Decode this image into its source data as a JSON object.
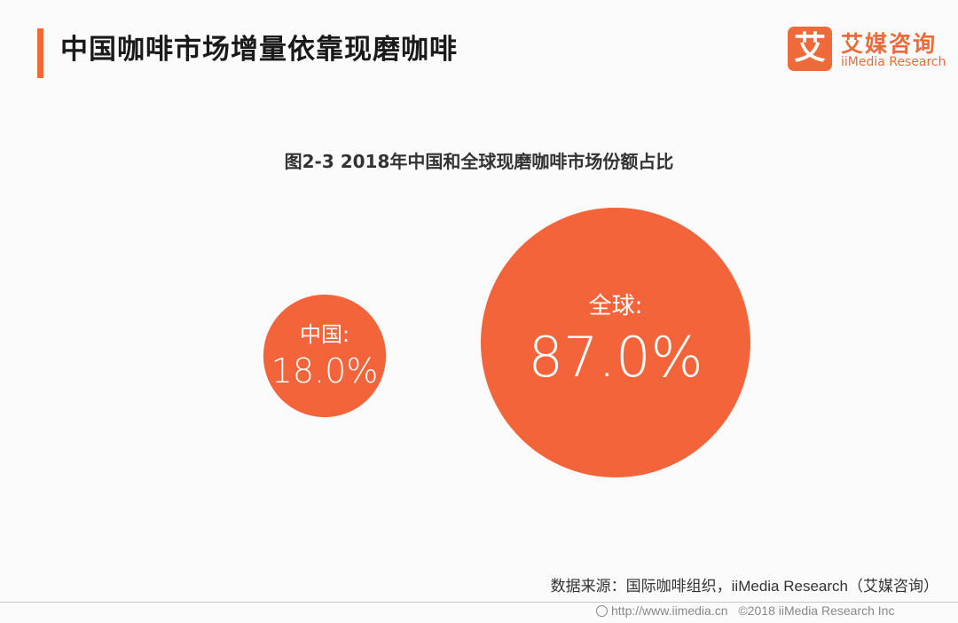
{
  "header": {
    "title": "中国咖啡市场增量依靠现磨咖啡"
  },
  "logo": {
    "mark": "艾",
    "name_cn": "艾媒咨询",
    "name_en": "iiMedia Research"
  },
  "chart_data": {
    "type": "bubble",
    "title": "图2-3 2018年中国和全球现磨咖啡市场份额占比",
    "categories": [
      "中国",
      "全球"
    ],
    "values": [
      18.0,
      87.0
    ],
    "value_labels": [
      "18.0%",
      "87.0%"
    ],
    "category_labels": [
      "中国:",
      "全球:"
    ],
    "unit": "%",
    "color": "#f4643a"
  },
  "source": "数据来源：国际咖啡组织，iiMedia Research（艾媒咨询）",
  "footer": {
    "url": "http://www.iimedia.cn",
    "copyright": "©2018  iiMedia Research Inc"
  }
}
